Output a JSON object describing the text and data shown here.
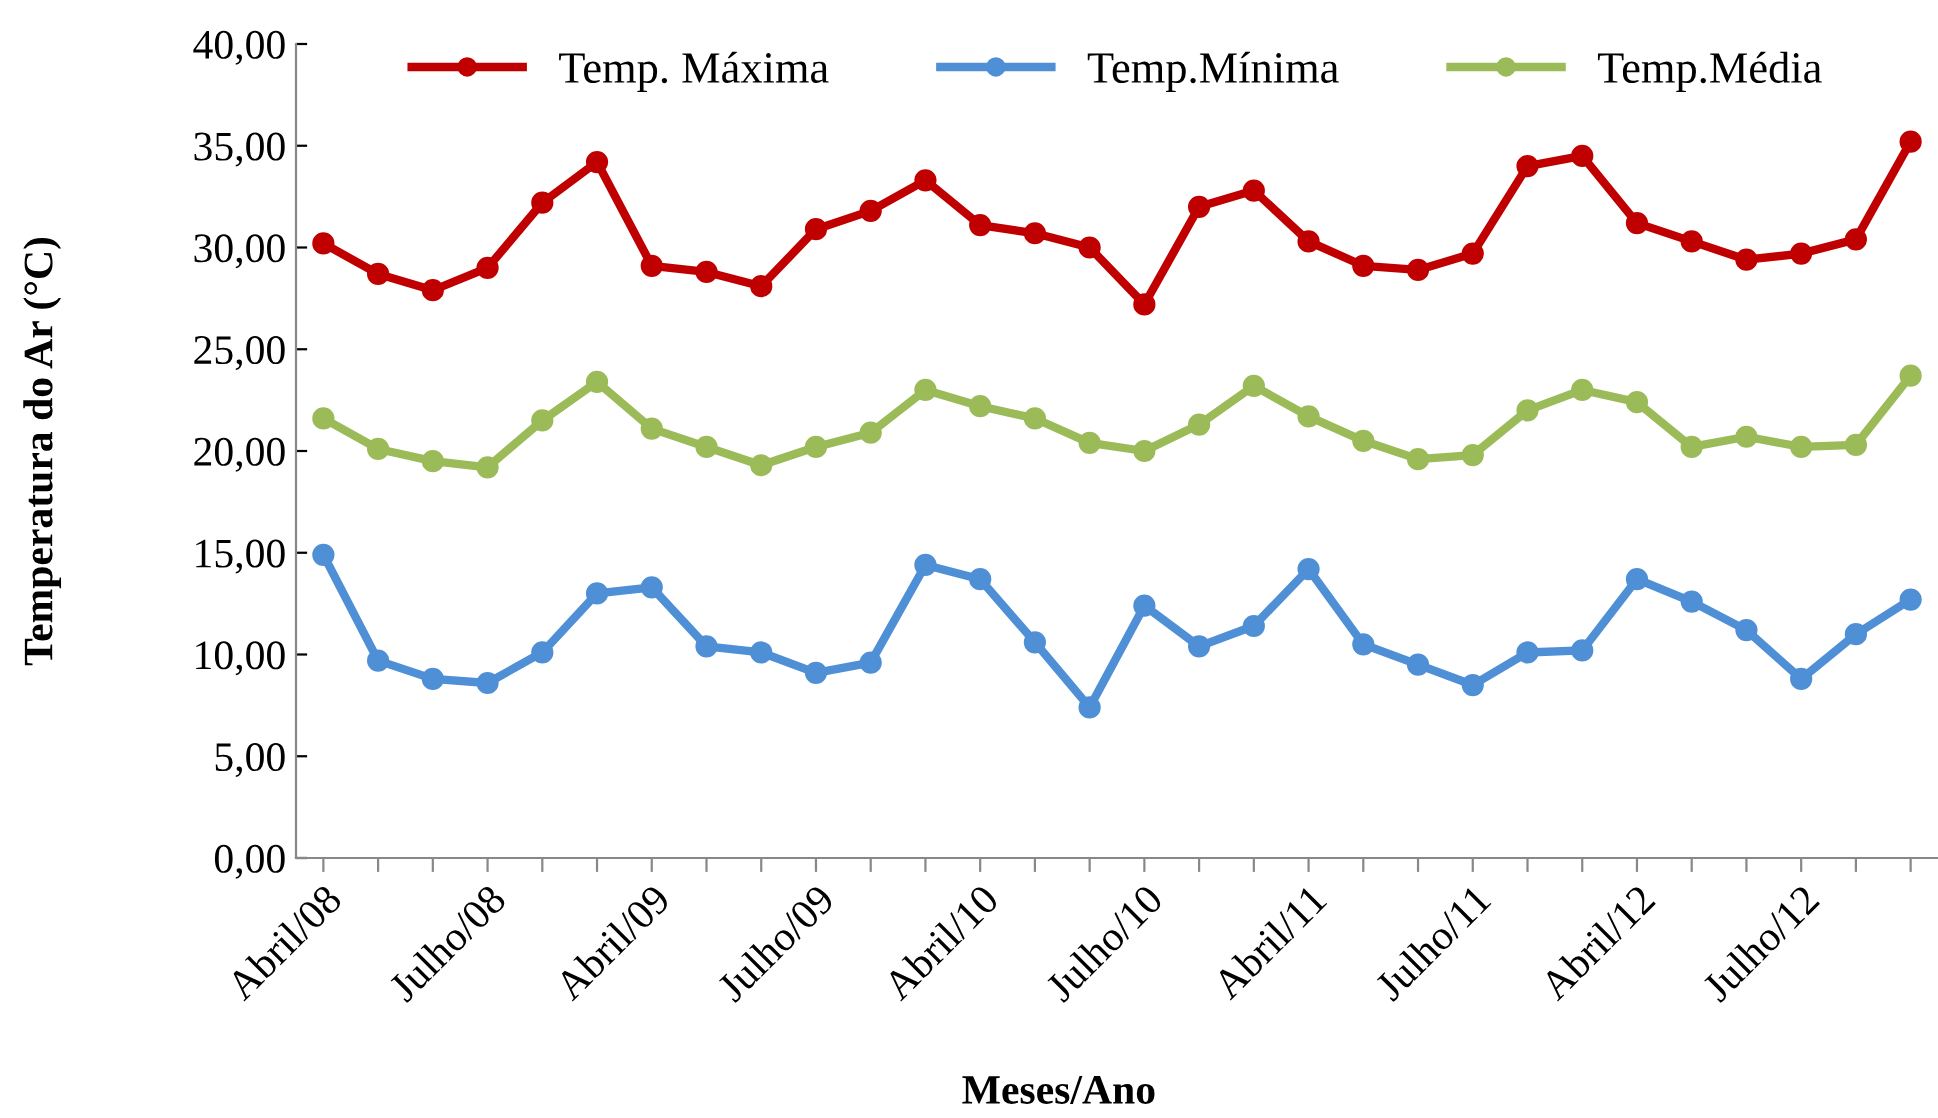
{
  "chart_data": {
    "type": "line",
    "xlabel": "Meses/Ano",
    "ylabel": "Temperatura do Ar (°C)",
    "categories": [
      "Abril/08",
      null,
      null,
      "Julho/08",
      null,
      null,
      "Abril/09",
      null,
      null,
      "Julho/09",
      null,
      null,
      "Abril/10",
      null,
      null,
      "Julho/10",
      null,
      null,
      "Abril/11",
      null,
      null,
      "Julho/11",
      null,
      null,
      "Abril/12",
      null,
      null,
      "Julho/12",
      null,
      null
    ],
    "series": [
      {
        "name": "Temp. Máxima",
        "color": "#c00000",
        "values": [
          30.2,
          28.7,
          27.9,
          29.0,
          32.2,
          34.2,
          29.1,
          28.8,
          28.1,
          30.9,
          31.8,
          33.3,
          31.1,
          30.7,
          30.0,
          27.2,
          32.0,
          32.8,
          30.3,
          29.1,
          28.9,
          29.7,
          34.0,
          34.5,
          31.2,
          30.3,
          29.4,
          29.7,
          30.4,
          35.2
        ]
      },
      {
        "name": "Temp.Mínima",
        "color": "#4f8fd6",
        "values": [
          14.9,
          9.7,
          8.8,
          8.6,
          10.1,
          13.0,
          13.3,
          10.4,
          10.1,
          9.1,
          9.6,
          14.4,
          13.7,
          10.6,
          7.4,
          12.4,
          10.4,
          11.4,
          14.2,
          10.5,
          9.5,
          8.5,
          10.1,
          10.2,
          13.7,
          12.6,
          11.2,
          8.8,
          11.0,
          12.7
        ]
      },
      {
        "name": "Temp.Média",
        "color": "#9bbb59",
        "values": [
          21.6,
          20.1,
          19.5,
          19.2,
          21.5,
          23.4,
          21.1,
          20.2,
          19.3,
          20.2,
          20.9,
          23.0,
          22.2,
          21.6,
          20.4,
          20.0,
          21.3,
          23.2,
          21.7,
          20.5,
          19.6,
          19.8,
          22.0,
          23.0,
          22.4,
          20.2,
          20.7,
          20.2,
          20.3,
          23.7
        ]
      }
    ],
    "ylim": [
      0,
      40
    ],
    "yticks": [
      {
        "value": 0,
        "label": "0,00"
      },
      {
        "value": 5,
        "label": "5,00"
      },
      {
        "value": 10,
        "label": "10,00"
      },
      {
        "value": 15,
        "label": "15,00"
      },
      {
        "value": 20,
        "label": "20,00"
      },
      {
        "value": 25,
        "label": "25,00"
      },
      {
        "value": 30,
        "label": "30,00"
      },
      {
        "value": 35,
        "label": "35,00"
      },
      {
        "value": 40,
        "label": "40,00"
      }
    ],
    "grid": false,
    "legend": "top",
    "marker": "circle",
    "line_style": "solid"
  }
}
